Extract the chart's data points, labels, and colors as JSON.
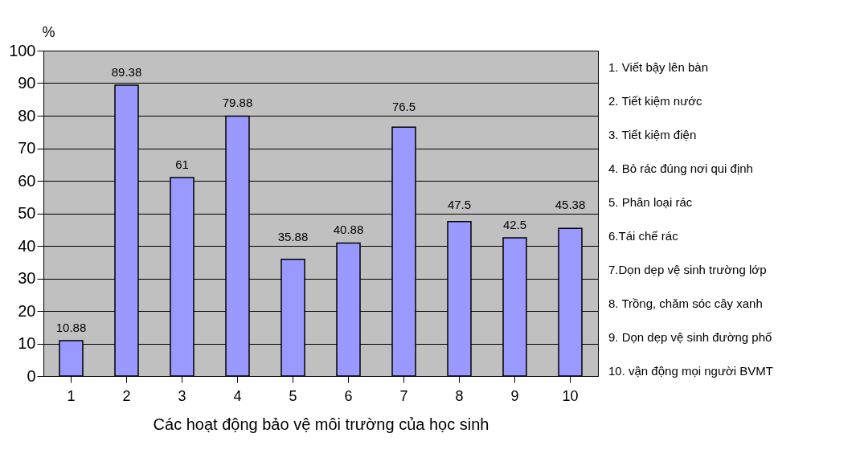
{
  "chart_data": {
    "type": "bar",
    "ylabel": "%",
    "xlabel": "Các hoạt động bảo vệ  môi trường của học sinh",
    "categories": [
      "1",
      "2",
      "3",
      "4",
      "5",
      "6",
      "7",
      "8",
      "9",
      "10"
    ],
    "values": [
      10.88,
      89.38,
      61,
      79.88,
      35.88,
      40.88,
      76.5,
      47.5,
      42.5,
      45.38
    ],
    "color": "#9999ff",
    "ylim": [
      0,
      100
    ],
    "yticks": [
      0,
      10,
      20,
      30,
      40,
      50,
      60,
      70,
      80,
      90,
      100
    ],
    "grid": "y",
    "data_labels": true,
    "annotations": [
      "1. Viết bậy lên bàn",
      "2. Tiết kiệm nước",
      "3. Tiết kiệm điện",
      "4. Bỏ rác đúng nơi qui định",
      "5. Phân loại rác",
      "6.Tái chế rác",
      "7.Dọn dẹp vệ sinh trường lớp",
      "8. Trồng, chăm sóc cây xanh",
      "9. Dọn dẹp vệ sinh đường phố",
      "10. vận động mọi người BVMT"
    ]
  }
}
